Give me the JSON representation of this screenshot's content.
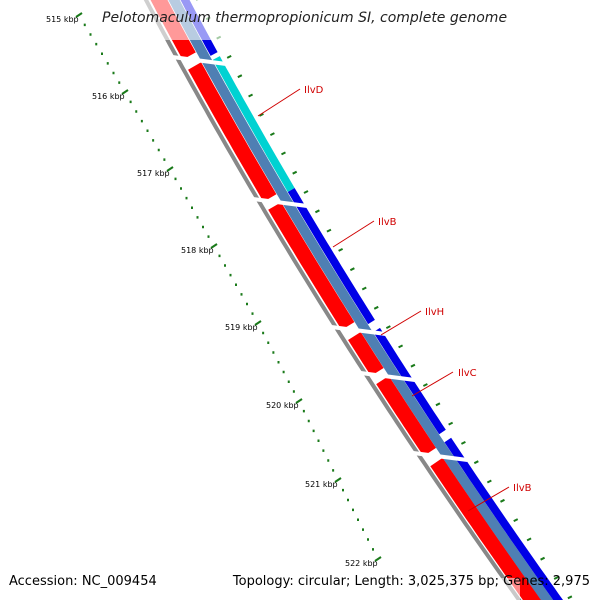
{
  "title": "Pelotomaculum thermopropionicum SI, complete genome",
  "footer": {
    "accession": "Accession: NC_009454",
    "topology": "Topology: circular; Length: 3,025,375 bp; Genes: 2,975"
  },
  "scale": {
    "labels": [
      "515 kbp",
      "516 kbp",
      "517 kbp",
      "518 kbp",
      "519 kbp",
      "520 kbp",
      "521 kbp",
      "522 kbp"
    ]
  },
  "genes": [
    {
      "name": "IlvD"
    },
    {
      "name": "IlvB"
    },
    {
      "name": "IlvH"
    },
    {
      "name": "IlvC"
    },
    {
      "name": "IlvB"
    }
  ],
  "colors": {
    "cds": "#ff0000",
    "gene": "#0000e6",
    "highlight": "#00d2d2",
    "feature": "#4f7fb3",
    "backbone": "#888888",
    "ticks": "#1a7a1a",
    "labels": "#d00000"
  }
}
